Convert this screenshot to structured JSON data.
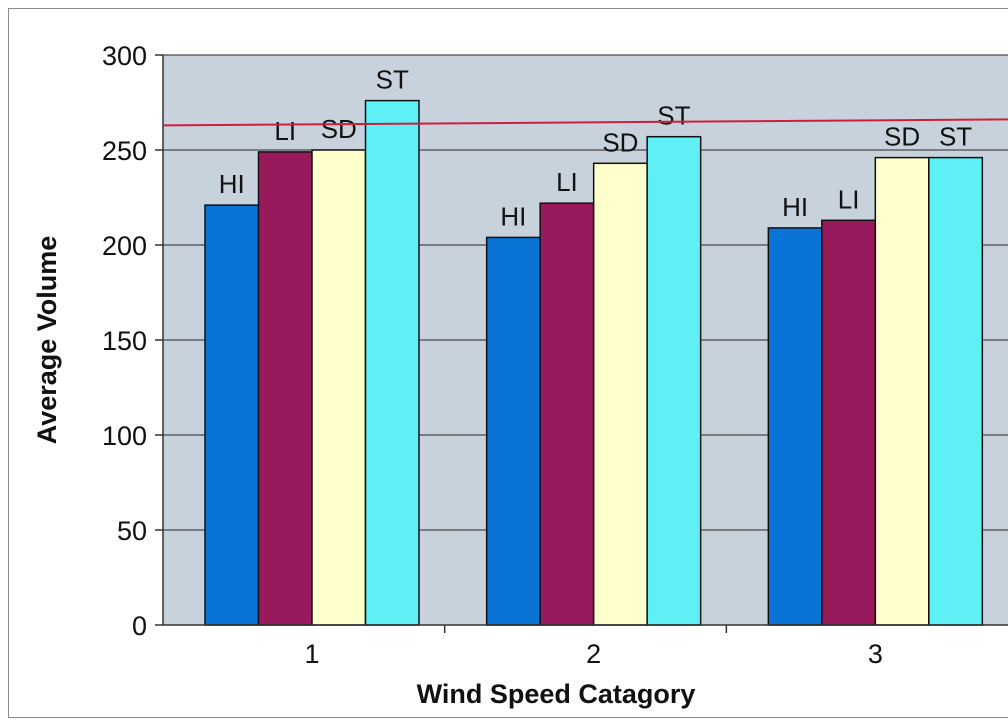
{
  "chart_data": {
    "type": "bar",
    "categories": [
      "1",
      "2",
      "3"
    ],
    "series": [
      {
        "name": "HI",
        "values": [
          221,
          204,
          209
        ],
        "color": "#0a74d6"
      },
      {
        "name": "LI",
        "values": [
          249,
          222,
          213
        ],
        "color": "#991a5c"
      },
      {
        "name": "SD",
        "values": [
          250,
          243,
          246
        ],
        "color": "#ffffcc"
      },
      {
        "name": "ST",
        "values": [
          276,
          257,
          246
        ],
        "color": "#5ef0f4"
      }
    ],
    "reference_line": {
      "value": 264,
      "color": "#cc1f3c"
    },
    "xlabel": "Wind Speed Catagory",
    "ylabel": "Average Volume",
    "ylim": [
      0,
      300
    ],
    "yticks": [
      0,
      50,
      100,
      150,
      200,
      250,
      300
    ],
    "grid": true,
    "plot_background": "#c8d2dc"
  }
}
